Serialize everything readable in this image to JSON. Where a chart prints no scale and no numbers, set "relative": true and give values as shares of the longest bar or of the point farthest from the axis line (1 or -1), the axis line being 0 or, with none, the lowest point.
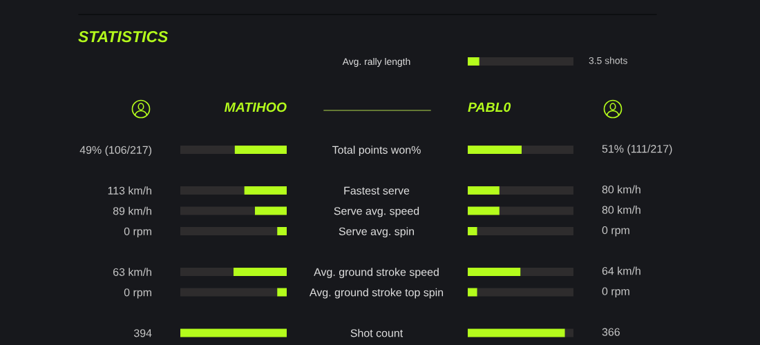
{
  "chart_data": [
    {
      "type": "bar",
      "orientation": "horizontal",
      "stacked": true,
      "relative": true,
      "categories": [
        "Avg. rally length"
      ],
      "series": [
        {
          "color": "#b4fc1c",
          "values": [
            0.11
          ]
        },
        {
          "color": "#2e2c2d",
          "values": [
            0.89
          ]
        }
      ],
      "annotations": [
        "3.5 shots"
      ]
    },
    {
      "type": "bar",
      "title": "STATISTICS",
      "orientation": "horizontal",
      "stacked": true,
      "relative": true,
      "categories": [
        "49% (106/217)",
        null,
        "113 km/h",
        "89 km/h",
        "0 rpm",
        null,
        "63 km/h",
        "0 rpm",
        null,
        "394"
      ],
      "series": [
        {
          "name": "MATIHOO",
          "color": "#b4fc1c",
          "values": [
            -0.49,
            null,
            -0.4,
            -0.3,
            -0.09,
            null,
            -0.5,
            -0.09,
            null,
            -1.0
          ]
        },
        {
          "color": "#2e2c2d",
          "values": [
            -0.51,
            null,
            -0.6,
            -0.7,
            -0.91,
            null,
            -0.5,
            -0.91,
            null,
            0
          ]
        }
      ]
    },
    {
      "type": "bar",
      "orientation": "horizontal",
      "stacked": true,
      "relative": true,
      "categories": [
        "Total points won%",
        null,
        "Fastest serve",
        "Serve avg. speed",
        "Serve avg. spin",
        null,
        "Avg. ground stroke speed",
        "Avg. ground stroke top spin",
        null,
        "Shot count"
      ],
      "series": [
        {
          "name": "PABL0",
          "color": "#b4fc1c",
          "values": [
            0.51,
            null,
            0.3,
            0.3,
            0.09,
            null,
            0.5,
            0.09,
            null,
            0.92
          ]
        },
        {
          "color": "#2e2c2d",
          "values": [
            0.49,
            null,
            0.7,
            0.7,
            0.91,
            null,
            0.5,
            0.91,
            null,
            0.08
          ]
        }
      ],
      "annotations": [
        "51% (111/217)",
        "80 km/h",
        "80 km/h",
        "0 rpm",
        "64 km/h",
        "0 rpm",
        "366"
      ]
    }
  ]
}
